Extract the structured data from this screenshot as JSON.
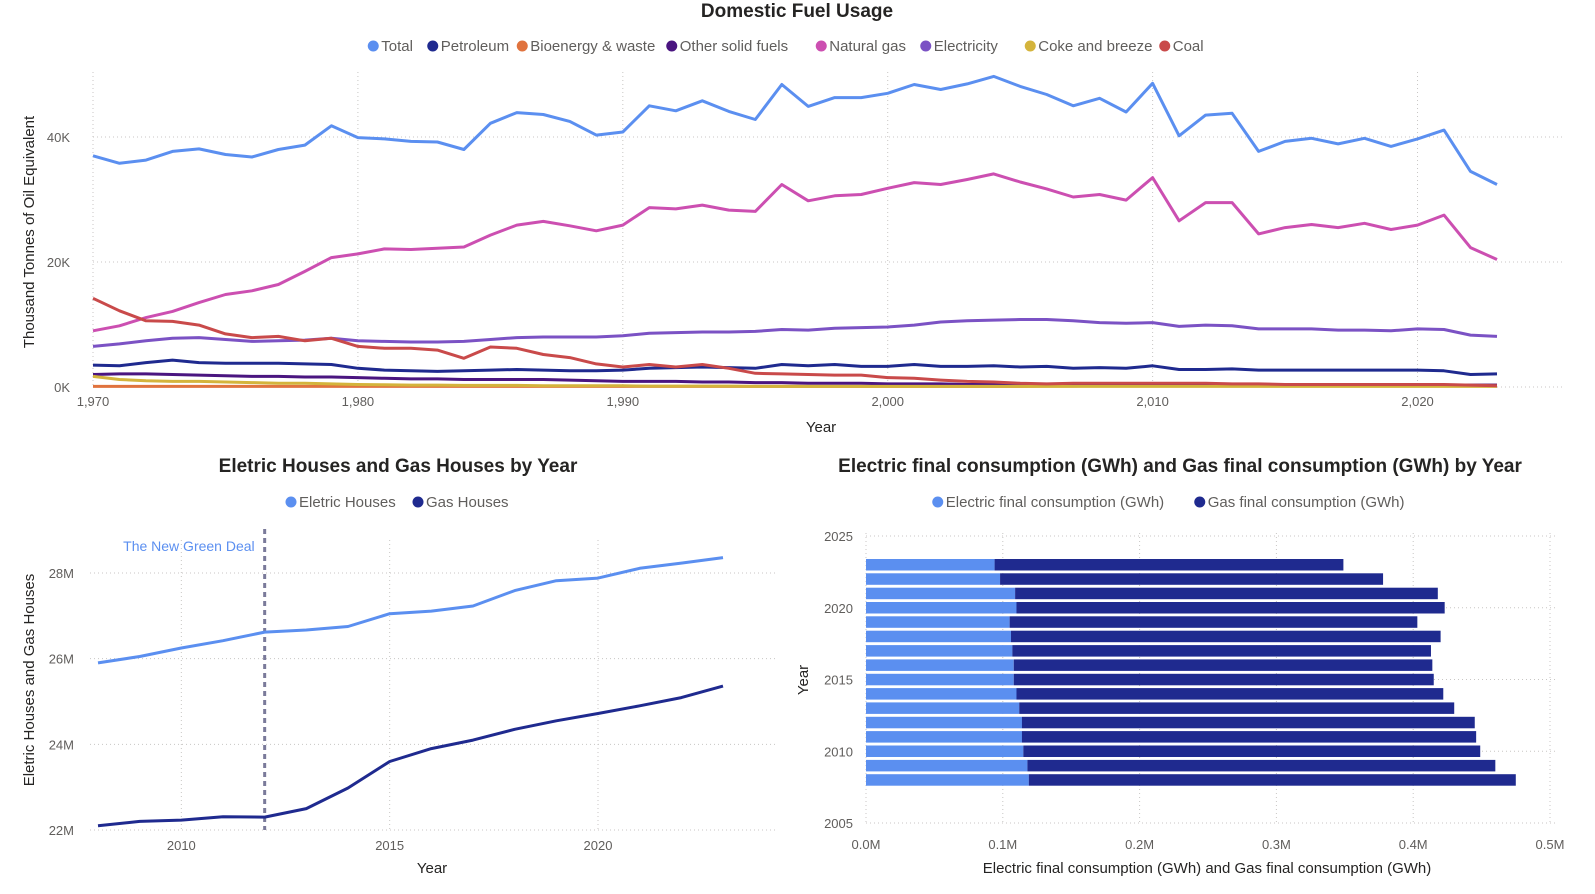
{
  "chart_data": [
    {
      "type": "line",
      "title": "Domestic Fuel Usage",
      "xlabel": "Year",
      "ylabel": "Thousand Tonnes of Oil Equivalent",
      "xlim": [
        1970,
        2023
      ],
      "ylim": [
        0,
        50000
      ],
      "x_ticks": [
        "1,970",
        "1,980",
        "1,990",
        "2,000",
        "2,010",
        "2,020"
      ],
      "y_ticks": [
        "0K",
        "20K",
        "40K"
      ],
      "legend_position": "top-center",
      "grid": true,
      "x": [
        1970,
        1971,
        1972,
        1973,
        1974,
        1975,
        1976,
        1977,
        1978,
        1979,
        1980,
        1981,
        1982,
        1983,
        1984,
        1985,
        1986,
        1987,
        1988,
        1989,
        1990,
        1991,
        1992,
        1993,
        1994,
        1995,
        1996,
        1997,
        1998,
        1999,
        2000,
        2001,
        2002,
        2003,
        2004,
        2005,
        2006,
        2007,
        2008,
        2009,
        2010,
        2011,
        2012,
        2013,
        2014,
        2015,
        2016,
        2017,
        2018,
        2019,
        2020,
        2021,
        2022,
        2023
      ],
      "series": [
        {
          "name": "Total",
          "color": "#5b8ff0",
          "values": [
            37000,
            35800,
            36300,
            37700,
            38100,
            37200,
            36800,
            38000,
            38700,
            41800,
            39900,
            39700,
            39300,
            39200,
            38000,
            42200,
            43900,
            43600,
            42500,
            40300,
            40800,
            45000,
            44200,
            45800,
            44100,
            42800,
            48400,
            44900,
            46300,
            46300,
            47000,
            48400,
            47600,
            48500,
            49700,
            48100,
            46800,
            45000,
            46200,
            44000,
            48600,
            40200,
            43500,
            43800,
            37700,
            39300,
            39800,
            38900,
            39800,
            38500,
            39700,
            41100,
            34500,
            32400
          ]
        },
        {
          "name": "Petroleum",
          "color": "#1f2a8f",
          "values": [
            3500,
            3400,
            3900,
            4300,
            3900,
            3800,
            3800,
            3800,
            3700,
            3600,
            3000,
            2700,
            2600,
            2500,
            2600,
            2700,
            2800,
            2700,
            2600,
            2600,
            2700,
            3000,
            3100,
            3200,
            3100,
            3000,
            3600,
            3400,
            3600,
            3300,
            3300,
            3600,
            3300,
            3300,
            3400,
            3200,
            3300,
            3000,
            3100,
            3000,
            3400,
            2800,
            2800,
            2900,
            2700,
            2700,
            2700,
            2700,
            2700,
            2700,
            2700,
            2600,
            2000,
            2100
          ]
        },
        {
          "name": "Bioenergy & waste",
          "color": "#e0733e",
          "values": [
            100,
            100,
            100,
            100,
            100,
            100,
            100,
            100,
            100,
            100,
            100,
            100,
            100,
            100,
            100,
            100,
            100,
            100,
            100,
            100,
            100,
            100,
            100,
            100,
            100,
            100,
            100,
            100,
            100,
            100,
            100,
            100,
            100,
            100,
            100,
            100,
            150,
            150,
            200,
            200,
            250,
            250,
            300,
            300,
            300,
            300,
            300,
            300,
            300,
            300,
            300,
            300,
            300,
            300
          ]
        },
        {
          "name": "Other solid fuels",
          "color": "#4a1580",
          "values": [
            2000,
            2100,
            2100,
            2000,
            1900,
            1800,
            1700,
            1700,
            1600,
            1600,
            1500,
            1400,
            1300,
            1300,
            1200,
            1200,
            1200,
            1200,
            1100,
            1000,
            900,
            900,
            900,
            800,
            800,
            700,
            700,
            600,
            600,
            600,
            500,
            500,
            500,
            400,
            400,
            400,
            400,
            400,
            400,
            400,
            400,
            400,
            400,
            400,
            400,
            400,
            400,
            400,
            400,
            300,
            300,
            300,
            300,
            300
          ]
        },
        {
          "name": "Natural gas",
          "color": "#cc4fb1",
          "values": [
            9000,
            9800,
            11100,
            12100,
            13500,
            14800,
            15400,
            16400,
            18500,
            20700,
            21300,
            22100,
            22000,
            22200,
            22400,
            24300,
            25900,
            26500,
            25800,
            25000,
            25900,
            28700,
            28500,
            29100,
            28300,
            28100,
            32400,
            29800,
            30600,
            30800,
            31800,
            32700,
            32400,
            33200,
            34100,
            32800,
            31700,
            30400,
            30800,
            29900,
            33500,
            26600,
            29500,
            29500,
            24500,
            25500,
            26000,
            25500,
            26200,
            25200,
            25900,
            27500,
            22300,
            20400
          ]
        },
        {
          "name": "Electricity",
          "color": "#7b52c4",
          "values": [
            6500,
            6900,
            7400,
            7800,
            7900,
            7600,
            7300,
            7400,
            7500,
            7800,
            7400,
            7300,
            7200,
            7200,
            7300,
            7600,
            7900,
            8000,
            8000,
            8000,
            8200,
            8600,
            8700,
            8800,
            8800,
            8900,
            9200,
            9100,
            9400,
            9500,
            9600,
            9900,
            10400,
            10600,
            10700,
            10800,
            10800,
            10600,
            10300,
            10200,
            10300,
            9700,
            9900,
            9800,
            9300,
            9300,
            9300,
            9100,
            9100,
            9000,
            9300,
            9200,
            8300,
            8100
          ]
        },
        {
          "name": "Coke and breeze",
          "color": "#d4b43c",
          "values": [
            1700,
            1200,
            1000,
            900,
            900,
            800,
            700,
            600,
            600,
            500,
            400,
            350,
            300,
            300,
            250,
            250,
            250,
            200,
            200,
            200,
            200,
            150,
            150,
            150,
            150,
            100,
            100,
            100,
            100,
            100,
            100,
            100,
            100,
            100,
            100,
            100,
            100,
            100,
            100,
            100,
            100,
            100,
            100,
            100,
            100,
            100,
            100,
            100,
            100,
            100,
            100,
            100,
            100,
            100
          ]
        },
        {
          "name": "Coal",
          "color": "#c94a4a",
          "values": [
            14200,
            12200,
            10600,
            10500,
            9900,
            8500,
            7900,
            8100,
            7400,
            7800,
            6500,
            6200,
            6200,
            5900,
            4600,
            6400,
            6200,
            5200,
            4700,
            3700,
            3200,
            3600,
            3200,
            3600,
            3000,
            2200,
            2100,
            2000,
            1900,
            1900,
            1500,
            1400,
            1100,
            900,
            800,
            600,
            500,
            600,
            600,
            600,
            600,
            600,
            600,
            500,
            500,
            400,
            400,
            400,
            400,
            400,
            400,
            400,
            300,
            200
          ]
        }
      ]
    },
    {
      "type": "line",
      "title": "Eletric Houses and Gas Houses by Year",
      "xlabel": "Year",
      "ylabel": "Eletric Houses and Gas Houses",
      "xlim": [
        2008,
        2023
      ],
      "ylim": [
        22000000,
        29000000
      ],
      "x_ticks": [
        "2010",
        "2015",
        "2020"
      ],
      "y_ticks": [
        "22M",
        "24M",
        "26M",
        "28M"
      ],
      "legend_position": "top-center",
      "grid": true,
      "annotation": {
        "label": "The New Green Deal",
        "x": 2012
      },
      "x": [
        2008,
        2009,
        2010,
        2011,
        2012,
        2013,
        2014,
        2015,
        2016,
        2017,
        2018,
        2019,
        2020,
        2021,
        2022,
        2023
      ],
      "series": [
        {
          "name": "Eletric Houses",
          "color": "#5b8ff0",
          "values": [
            25900000,
            26050000,
            26250000,
            26420000,
            26620000,
            26670000,
            26750000,
            27050000,
            27110000,
            27230000,
            27590000,
            27820000,
            27880000,
            28110000,
            28230000,
            28360000
          ]
        },
        {
          "name": "Gas Houses",
          "color": "#1f2a8f",
          "values": [
            22100000,
            22200000,
            22230000,
            22310000,
            22300000,
            22500000,
            22980000,
            23600000,
            23900000,
            24100000,
            24350000,
            24550000,
            24720000,
            24900000,
            25090000,
            25360000
          ]
        }
      ]
    },
    {
      "type": "bar",
      "orientation": "horizontal",
      "stacked": true,
      "title": "Electric final consumption (GWh) and Gas final consumption (GWh) by Year",
      "xlabel": "Electric final consumption (GWh) and Gas final consumption (GWh)",
      "ylabel": "Year",
      "xlim": [
        0,
        500000
      ],
      "ylim": [
        2005,
        2025
      ],
      "x_ticks": [
        "0.0M",
        "0.1M",
        "0.2M",
        "0.3M",
        "0.4M",
        "0.5M"
      ],
      "y_ticks": [
        "2005",
        "2010",
        "2015",
        "2020",
        "2025"
      ],
      "legend_position": "top-center",
      "grid": true,
      "categories": [
        2008,
        2009,
        2010,
        2011,
        2012,
        2013,
        2014,
        2015,
        2016,
        2017,
        2018,
        2019,
        2020,
        2021,
        2022,
        2023
      ],
      "series": [
        {
          "name": "Electric final consumption (GWh)",
          "color": "#5b8ff0",
          "values": [
            119000,
            118000,
            115000,
            114000,
            114000,
            112000,
            110000,
            108000,
            108000,
            107000,
            106000,
            105000,
            110000,
            109000,
            98000,
            94000
          ]
        },
        {
          "name": "Gas final consumption (GWh)",
          "color": "#1f2a8f",
          "values": [
            356000,
            342000,
            334000,
            332000,
            331000,
            318000,
            312000,
            307000,
            306000,
            306000,
            314000,
            298000,
            313000,
            309000,
            280000,
            255000
          ]
        }
      ]
    }
  ]
}
